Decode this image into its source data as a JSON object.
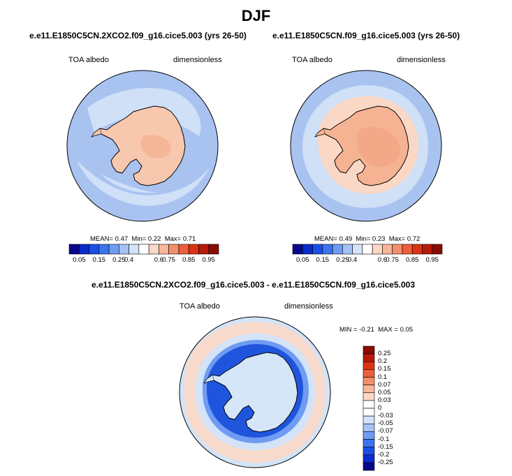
{
  "figure": {
    "title": "DJF"
  },
  "panels": [
    {
      "title": "e.e11.E1850C5CN.2XCO2.f09_g16.cice5.003 (yrs 26-50)",
      "variable": "TOA albedo",
      "units": "dimensionless",
      "stats": {
        "mean_label": "MEAN=",
        "mean": "0.47",
        "min_label": "Min=",
        "min": "0.22",
        "max_label": "Max=",
        "max": "0.71"
      }
    },
    {
      "title": "e.e11.E1850C5CN.f09_g16.cice5.003 (yrs 26-50)",
      "variable": "TOA albedo",
      "units": "dimensionless",
      "stats": {
        "mean_label": "MEAN=",
        "mean": "0.49",
        "min_label": "Min=",
        "min": "0.23",
        "max_label": "Max=",
        "max": "0.72"
      }
    },
    {
      "title": "e.e11.E1850C5CN.2XCO2.f09_g16.cice5.003 - e.e11.E1850C5CN.f09_g16.cice5.003",
      "variable": "TOA albedo",
      "units": "dimensionless",
      "stats": {
        "min_label": "MIN =",
        "min": "-0.21",
        "max_label": "MAX =",
        "max": "0.05"
      }
    }
  ],
  "colorbar_abs": {
    "ticks": [
      "0.05",
      "0.15",
      "0.25",
      "0.4",
      "0.6",
      "0.75",
      "0.85",
      "0.95"
    ],
    "colors": [
      "#08088c",
      "#0a2ccc",
      "#1a4fe6",
      "#3c74f0",
      "#6f9bf2",
      "#a6c2f4",
      "#d3e3f8",
      "#ffffff",
      "#fbd8c6",
      "#f8b69a",
      "#f38e6c",
      "#ec5e3c",
      "#dc3314",
      "#b81a0a",
      "#8a0a04"
    ]
  },
  "colorbar_diff": {
    "ticks": [
      "0.25",
      "0.2",
      "0.15",
      "0.1",
      "0.07",
      "0.05",
      "0.03",
      "0",
      "-0.03",
      "-0.05",
      "-0.07",
      "-0.1",
      "-0.15",
      "-0.2",
      "-0.25"
    ],
    "colors": [
      "#8a0a04",
      "#b81a0a",
      "#dc3314",
      "#ec5e3c",
      "#f38e6c",
      "#f8b69a",
      "#fbd8c6",
      "#ffffff",
      "#ffffff",
      "#d3e3f8",
      "#a6c2f4",
      "#6f9bf2",
      "#3c74f0",
      "#1a4fe6",
      "#0a2ccc",
      "#08088c"
    ]
  },
  "map_colors": {
    "ocean_low": "#a9c3f1",
    "ocean_mid": "#cfe0f7",
    "continent_abs": "#f8c8ae",
    "continent_plateau": "#f5b394",
    "sea_ice_pos": "#fbd8c6",
    "diff_neg_strong": "#1f55dd",
    "diff_neg_mid": "#6f9bf2",
    "diff_continent": "#d6e6f9"
  }
}
